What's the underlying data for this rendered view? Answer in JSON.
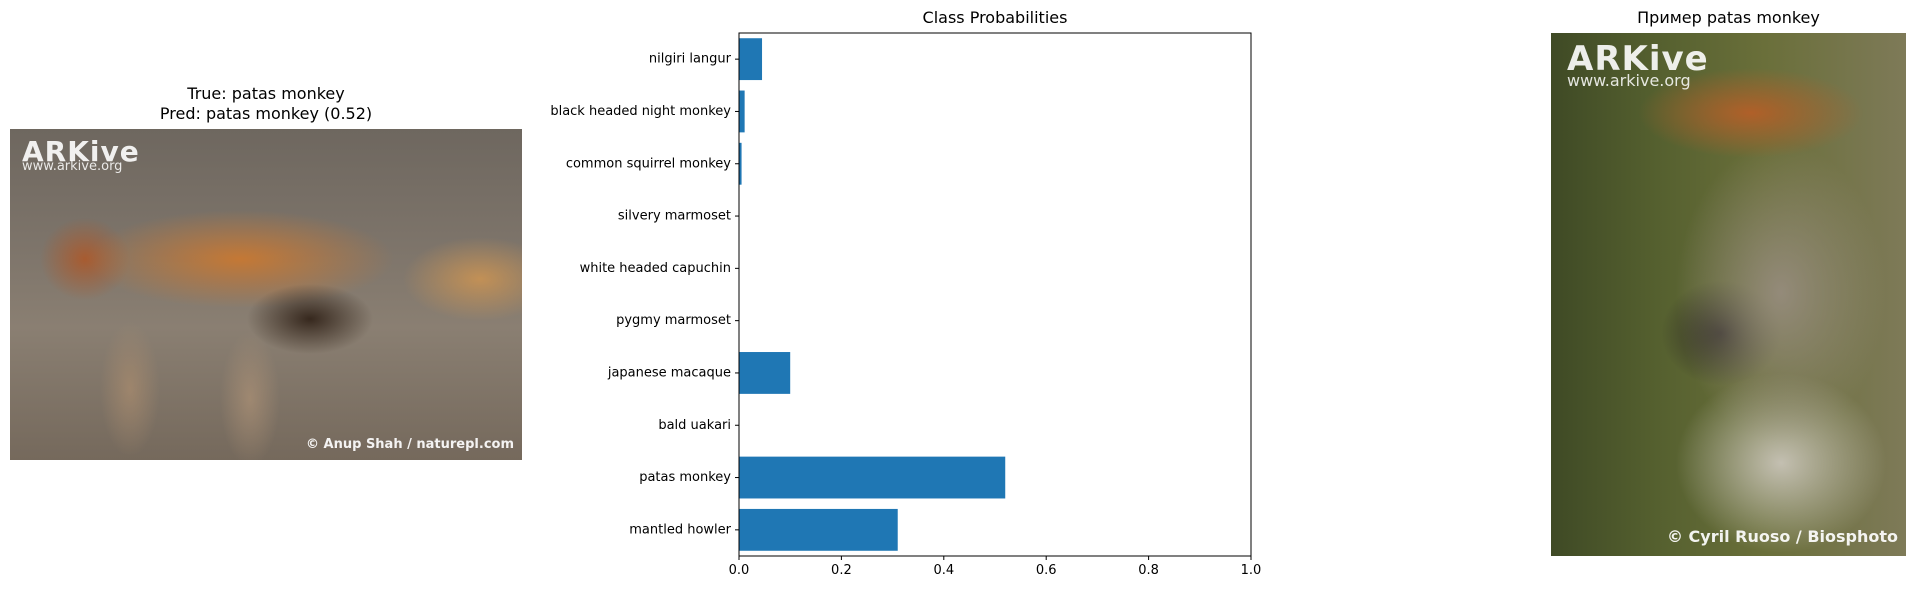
{
  "left_panel": {
    "title_line1": "True: patas monkey",
    "title_line2": "Pred: patas monkey (0.52)",
    "photo": {
      "brand": "ARKive",
      "url": "www.arkive.org",
      "credit": "© Anup Shah / naturepl.com"
    }
  },
  "right_panel": {
    "title": "Пример patas monkey",
    "photo": {
      "brand": "ARKive",
      "url": "www.arkive.org",
      "credit": "© Cyril Ruoso / Biosphoto"
    }
  },
  "colors": {
    "bar": "#1f77b4",
    "axis": "#000000"
  },
  "chart_data": {
    "type": "bar",
    "orientation": "horizontal",
    "title": "Class Probabilities",
    "xlabel": "",
    "ylabel": "",
    "xlim": [
      0,
      1.0
    ],
    "xticks": [
      "0.0",
      "0.2",
      "0.4",
      "0.6",
      "0.8",
      "1.0"
    ],
    "xtick_values": [
      0,
      0.2,
      0.4,
      0.6,
      0.8,
      1.0
    ],
    "categories": [
      "nilgiri langur",
      "black headed night monkey",
      "common squirrel monkey",
      "silvery marmoset",
      "white headed capuchin",
      "pygmy marmoset",
      "japanese macaque",
      "bald uakari",
      "patas monkey",
      "mantled howler"
    ],
    "values": [
      0.045,
      0.011,
      0.005,
      0.0,
      0.0,
      0.0,
      0.1,
      0.0,
      0.52,
      0.31
    ],
    "grid": false
  }
}
